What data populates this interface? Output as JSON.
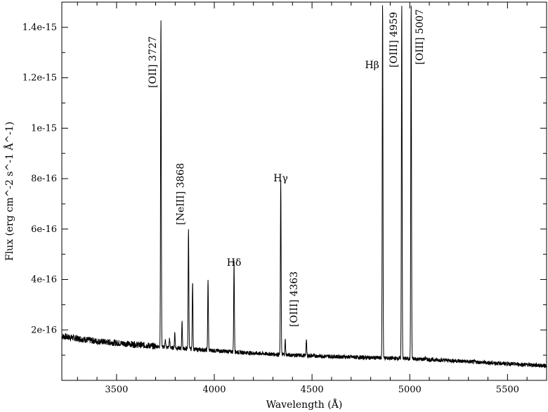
{
  "chart_data": {
    "type": "line",
    "title": "",
    "xlabel": "Wavelength (Å)",
    "ylabel": "Flux (erg cm^-2 s^-1 Å^-1)",
    "xlim": [
      3220,
      5700
    ],
    "ylim": [
      0,
      1.5e-15
    ],
    "x_ticks": [
      3500,
      4000,
      4500,
      5000,
      5500
    ],
    "x_tick_labels": [
      "3500",
      "4000",
      "4500",
      "5000",
      "5500"
    ],
    "y_ticks": [
      2e-16,
      4e-16,
      6e-16,
      8e-16,
      1e-15,
      1.2e-15,
      1.4e-15
    ],
    "y_tick_labels": [
      "2e-16",
      "4e-16",
      "6e-16",
      "8e-16",
      "1e-15",
      "1.2e-15",
      "1.4e-15"
    ],
    "grid": false,
    "line_color": "#000000",
    "continuum": {
      "x": [
        3220,
        3400,
        3600,
        3800,
        4000,
        4200,
        4400,
        4600,
        4800,
        5000,
        5200,
        5400,
        5700
      ],
      "y": [
        1.75e-16,
        1.55e-16,
        1.42e-16,
        1.28e-16,
        1.18e-16,
        1.08e-16,
        1e-16,
        9.5e-17,
        9e-17,
        8.6e-17,
        7.9e-17,
        7e-17,
        5.8e-17
      ]
    },
    "emission_lines": [
      {
        "x": 3727,
        "peak": 1.44e-15,
        "label": "[OII] 3727"
      },
      {
        "x": 3750,
        "peak": 1.6e-16
      },
      {
        "x": 3771,
        "peak": 1.65e-16
      },
      {
        "x": 3798,
        "peak": 1.9e-16
      },
      {
        "x": 3835,
        "peak": 2.3e-16
      },
      {
        "x": 3868,
        "peak": 6.05e-16,
        "label": "[NeIII] 3868"
      },
      {
        "x": 3889,
        "peak": 3.9e-16
      },
      {
        "x": 3968,
        "peak": 3.95e-16
      },
      {
        "x": 4101,
        "peak": 4.7e-16,
        "label": "Hδ"
      },
      {
        "x": 4340,
        "peak": 7.95e-16,
        "label": "Hγ"
      },
      {
        "x": 4363,
        "peak": 1.6e-16,
        "label": "[OIII] 4363"
      },
      {
        "x": 4471,
        "peak": 1.6e-16
      },
      {
        "x": 4861,
        "peak": 1.5e-15,
        "label": "Hβ"
      },
      {
        "x": 4959,
        "peak": 1.5e-15,
        "label": "[OIII] 4959"
      },
      {
        "x": 5007,
        "peak": 1.5e-15,
        "label": "[OIII] 5007"
      },
      {
        "x": 5080,
        "peak": 9e-17
      }
    ]
  }
}
